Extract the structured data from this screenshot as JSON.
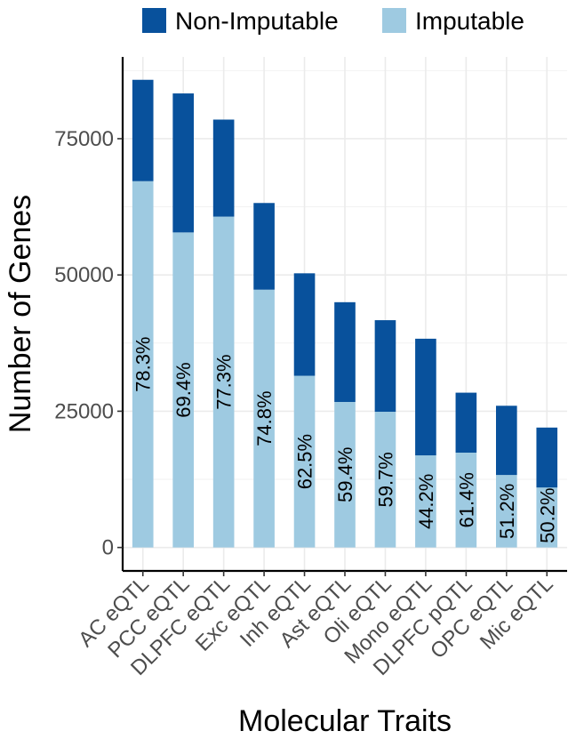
{
  "chart_data": {
    "type": "bar",
    "stacked": true,
    "xlabel": "Molecular Traits",
    "ylabel": "Number of Genes",
    "ylim": [
      -4300,
      90000
    ],
    "yticks": [
      0,
      25000,
      50000,
      75000
    ],
    "ytick_labels": [
      "0",
      "25000",
      "50000",
      "75000"
    ],
    "grid": true,
    "legend_position": "top",
    "categories": [
      "AC eQTL",
      "PCC eQTL",
      "DLPFC eQTL",
      "Exc eQTL",
      "Inh eQTL",
      "Ast eQTL",
      "Oli eQTL",
      "Mono eQTL",
      "DLPFC pQTL",
      "OPC eQTL",
      "Mic eQTL"
    ],
    "series": [
      {
        "name": "Imputable",
        "color": "#9ecae1",
        "values": [
          67200,
          57800,
          60700,
          47300,
          31500,
          26700,
          24900,
          16900,
          17400,
          13300,
          11000
        ]
      },
      {
        "name": "Non-Imputable",
        "color": "#08519c",
        "values": [
          18600,
          25500,
          17800,
          15900,
          18800,
          18300,
          16800,
          21400,
          11000,
          12700,
          11000
        ]
      }
    ],
    "legend_order": [
      "Non-Imputable",
      "Imputable"
    ],
    "percent_labels": [
      "78.3%",
      "69.4%",
      "77.3%",
      "74.8%",
      "62.5%",
      "59.4%",
      "59.7%",
      "44.2%",
      "61.4%",
      "51.2%",
      "50.2%"
    ]
  }
}
